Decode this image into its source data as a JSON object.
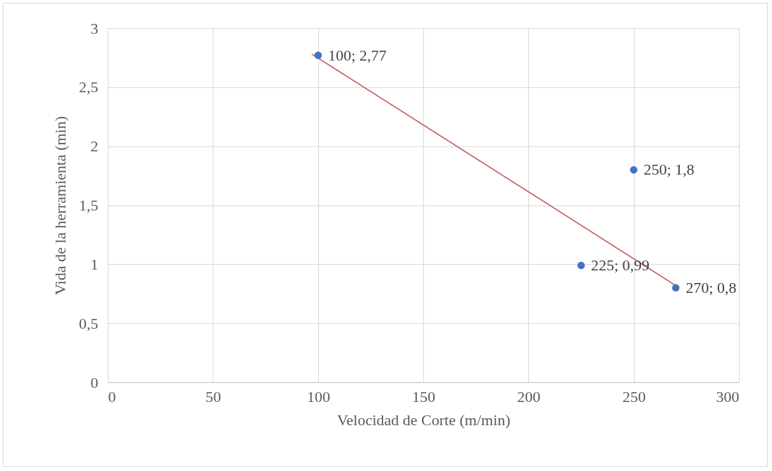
{
  "chart_data": {
    "type": "scatter",
    "xlabel": "Velocidad de Corte (m/min)",
    "ylabel": "Vida de la herramienta (min)",
    "xlim": [
      0,
      300
    ],
    "xticks": [
      0,
      50,
      100,
      150,
      200,
      250,
      300
    ],
    "ylim": [
      0,
      3
    ],
    "yticks": [
      0,
      {
        "value": 0.5,
        "label": "0,5"
      },
      1,
      {
        "value": 1.5,
        "label": "1,5"
      },
      2,
      {
        "value": 2.5,
        "label": "2,5"
      },
      3
    ],
    "grid": true,
    "marker": "circle",
    "series": [
      {
        "type": "line",
        "color": "#c0504d",
        "marker": "none",
        "x": [
          97,
          270
        ],
        "values": [
          2.78,
          0.82
        ]
      },
      {
        "color": "#4472c4",
        "x": [
          100,
          225,
          250,
          270
        ],
        "values": [
          2.77,
          0.99,
          1.8,
          0.8
        ],
        "value_labels": [
          "100; 2,77",
          "225; 0,99",
          "250; 1,8",
          "270; 0,8"
        ]
      }
    ]
  }
}
